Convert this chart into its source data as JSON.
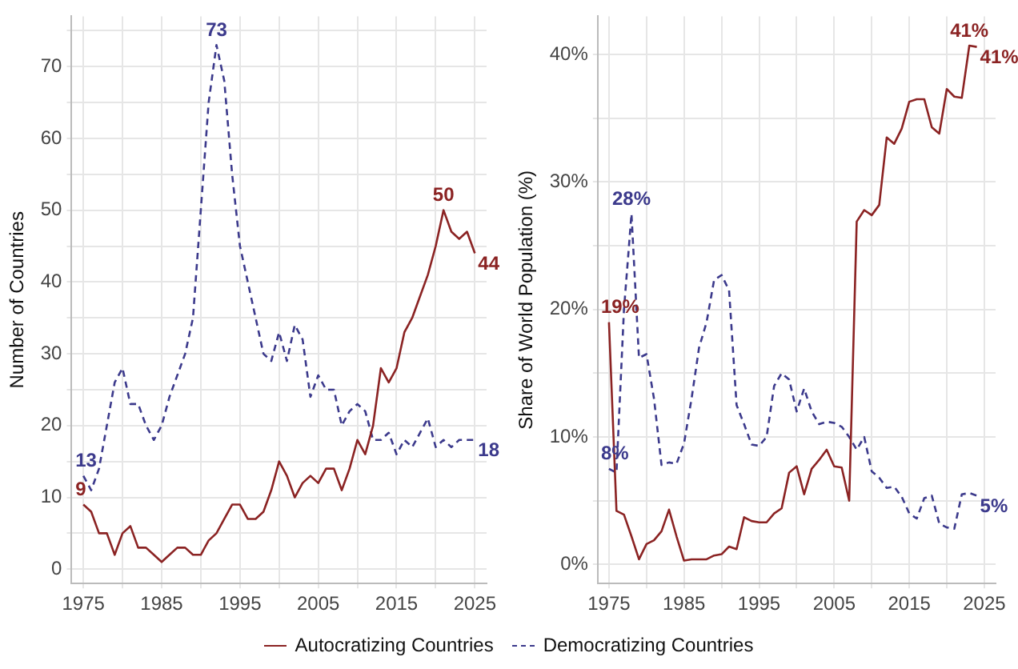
{
  "chart_data": [
    {
      "type": "line",
      "ylabel": "Number of Countries",
      "x": [
        1975,
        1976,
        1977,
        1978,
        1979,
        1980,
        1981,
        1982,
        1983,
        1984,
        1985,
        1986,
        1987,
        1988,
        1989,
        1990,
        1991,
        1992,
        1993,
        1994,
        1995,
        1996,
        1997,
        1998,
        1999,
        2000,
        2001,
        2002,
        2003,
        2004,
        2005,
        2006,
        2007,
        2008,
        2009,
        2010,
        2011,
        2012,
        2013,
        2014,
        2015,
        2016,
        2017,
        2018,
        2019,
        2020,
        2021,
        2022,
        2023,
        2024,
        2025
      ],
      "xlim": [
        1973.5,
        2026.5
      ],
      "ylim": [
        -2,
        77
      ],
      "xticks": [
        1975,
        {
          "value": 1980,
          "label": null
        },
        1985,
        {
          "value": 1990,
          "label": null
        },
        1995,
        {
          "value": 2000,
          "label": null
        },
        2005,
        {
          "value": 2010,
          "label": null
        },
        2015,
        {
          "value": 2020,
          "label": null
        },
        2025
      ],
      "yticks": [
        0,
        {
          "value": 5,
          "label": null
        },
        10,
        {
          "value": 15,
          "label": null
        },
        20,
        {
          "value": 25,
          "label": null
        },
        30,
        {
          "value": 35,
          "label": null
        },
        40,
        {
          "value": 45,
          "label": null
        },
        50,
        {
          "value": 55,
          "label": null
        },
        60,
        {
          "value": 65,
          "label": null
        },
        70,
        {
          "value": 75,
          "label": null
        }
      ],
      "grid": true,
      "legend": "bottom",
      "marker": "none",
      "series": [
        {
          "name": "Autocratizing Countries",
          "color": "#8b2323",
          "line_style": "solid",
          "values": [
            9,
            8,
            5,
            5,
            2,
            5,
            6,
            3,
            3,
            2,
            1,
            2,
            3,
            3,
            2,
            2,
            4,
            5,
            7,
            9,
            9,
            7,
            7,
            8,
            11,
            15,
            13,
            10,
            12,
            13,
            12,
            14,
            14,
            11,
            14,
            18,
            16,
            20,
            28,
            26,
            28,
            33,
            35,
            38,
            41,
            45,
            50,
            47,
            46,
            47,
            44
          ],
          "value_labels": [
            "9",
            null,
            null,
            null,
            null,
            null,
            null,
            null,
            null,
            null,
            null,
            null,
            null,
            null,
            null,
            null,
            null,
            null,
            null,
            null,
            null,
            null,
            null,
            null,
            null,
            null,
            null,
            null,
            null,
            null,
            null,
            null,
            null,
            null,
            null,
            null,
            null,
            null,
            null,
            null,
            null,
            null,
            null,
            null,
            null,
            null,
            "50",
            null,
            null,
            null,
            "44"
          ]
        },
        {
          "name": "Democratizing Countries",
          "color": "#3c3a8c",
          "line_style": "dashed",
          "values": [
            13,
            11,
            14,
            20,
            26,
            28,
            23,
            23,
            20,
            18,
            20,
            24,
            27,
            30,
            35,
            50,
            65,
            73,
            68,
            55,
            45,
            40,
            35,
            30,
            29,
            33,
            29,
            34,
            32,
            24,
            27,
            25,
            25,
            20,
            22,
            23,
            22,
            18,
            18,
            19,
            16,
            18,
            17,
            19,
            21,
            17,
            18,
            17,
            18,
            18,
            18
          ],
          "value_labels": [
            "13",
            null,
            null,
            null,
            null,
            null,
            null,
            null,
            null,
            null,
            null,
            null,
            null,
            null,
            null,
            null,
            null,
            "73",
            null,
            null,
            null,
            null,
            null,
            null,
            null,
            null,
            null,
            null,
            null,
            null,
            null,
            null,
            null,
            null,
            null,
            null,
            null,
            null,
            null,
            null,
            null,
            null,
            null,
            null,
            null,
            null,
            null,
            null,
            null,
            null,
            "18"
          ]
        }
      ]
    },
    {
      "type": "line",
      "ylabel": "Share of World Population (%)",
      "x": [
        1975,
        1976,
        1977,
        1978,
        1979,
        1980,
        1981,
        1982,
        1983,
        1984,
        1985,
        1986,
        1987,
        1988,
        1989,
        1990,
        1991,
        1992,
        1993,
        1994,
        1995,
        1996,
        1997,
        1998,
        1999,
        2000,
        2001,
        2002,
        2003,
        2004,
        2005,
        2006,
        2007,
        2008,
        2009,
        2010,
        2011,
        2012,
        2013,
        2014,
        2015,
        2016,
        2017,
        2018,
        2019,
        2020,
        2021,
        2022,
        2023,
        2024
      ],
      "xlim": [
        1973.5,
        2026.5
      ],
      "ylim": [
        -1.5,
        43
      ],
      "xticks": [
        1975,
        {
          "value": 1980,
          "label": null
        },
        1985,
        {
          "value": 1990,
          "label": null
        },
        1995,
        {
          "value": 2000,
          "label": null
        },
        2005,
        {
          "value": 2010,
          "label": null
        },
        2015,
        {
          "value": 2020,
          "label": null
        },
        2025
      ],
      "yticks": [
        {
          "value": 0,
          "label": "0%"
        },
        {
          "value": 5,
          "label": null
        },
        {
          "value": 10,
          "label": "10%"
        },
        {
          "value": 15,
          "label": null
        },
        {
          "value": 20,
          "label": "20%"
        },
        {
          "value": 25,
          "label": null
        },
        {
          "value": 30,
          "label": "30%"
        },
        {
          "value": 35,
          "label": null
        },
        {
          "value": 40,
          "label": "40%"
        }
      ],
      "grid": true,
      "marker": "none",
      "series": [
        {
          "color": "#8b2323",
          "line_style": "solid",
          "values": [
            19,
            4.2,
            3.9,
            2.2,
            0.4,
            1.6,
            1.9,
            2.6,
            4.3,
            2.2,
            0.3,
            0.4,
            0.4,
            0.4,
            0.7,
            0.8,
            1.4,
            1.2,
            3.7,
            3.4,
            3.3,
            3.3,
            4.0,
            4.4,
            7.2,
            7.7,
            5.5,
            7.5,
            8.2,
            9.0,
            7.7,
            7.6,
            5.0,
            26.9,
            27.8,
            27.4,
            28.2,
            33.5,
            33.0,
            34.2,
            36.3,
            36.5,
            36.5,
            34.3,
            33.8,
            37.3,
            36.7,
            36.6,
            40.7,
            40.6
          ],
          "value_labels": [
            "19%",
            null,
            null,
            null,
            null,
            null,
            null,
            null,
            null,
            null,
            null,
            null,
            null,
            null,
            null,
            null,
            null,
            null,
            null,
            null,
            null,
            null,
            null,
            null,
            null,
            null,
            null,
            null,
            null,
            null,
            null,
            null,
            null,
            null,
            null,
            null,
            null,
            null,
            null,
            null,
            null,
            null,
            null,
            null,
            null,
            null,
            null,
            null,
            "41%",
            "41%"
          ]
        },
        {
          "color": "#3c3a8c",
          "line_style": "dashed",
          "values": [
            7.5,
            7.2,
            20,
            27.5,
            16.2,
            16.5,
            13,
            7.8,
            8,
            7.9,
            9.5,
            13,
            17,
            19,
            22.3,
            22.7,
            21.5,
            12.5,
            11,
            9.4,
            9.3,
            10,
            14,
            15,
            14.5,
            12,
            13.8,
            12,
            11,
            11.2,
            11.1,
            10.8,
            10,
            9,
            10,
            7.3,
            6.8,
            6.0,
            6.1,
            5.3,
            4.0,
            3.6,
            5.2,
            5.4,
            3.2,
            2.9,
            2.8,
            5.5,
            5.6,
            5.4
          ],
          "value_labels": [
            "8%",
            null,
            null,
            "28%",
            null,
            null,
            null,
            null,
            null,
            null,
            null,
            null,
            null,
            null,
            null,
            null,
            null,
            null,
            null,
            null,
            null,
            null,
            null,
            null,
            null,
            null,
            null,
            null,
            null,
            null,
            null,
            null,
            null,
            null,
            null,
            null,
            null,
            null,
            null,
            null,
            null,
            null,
            null,
            null,
            null,
            null,
            null,
            null,
            null,
            "5%"
          ]
        }
      ]
    }
  ]
}
